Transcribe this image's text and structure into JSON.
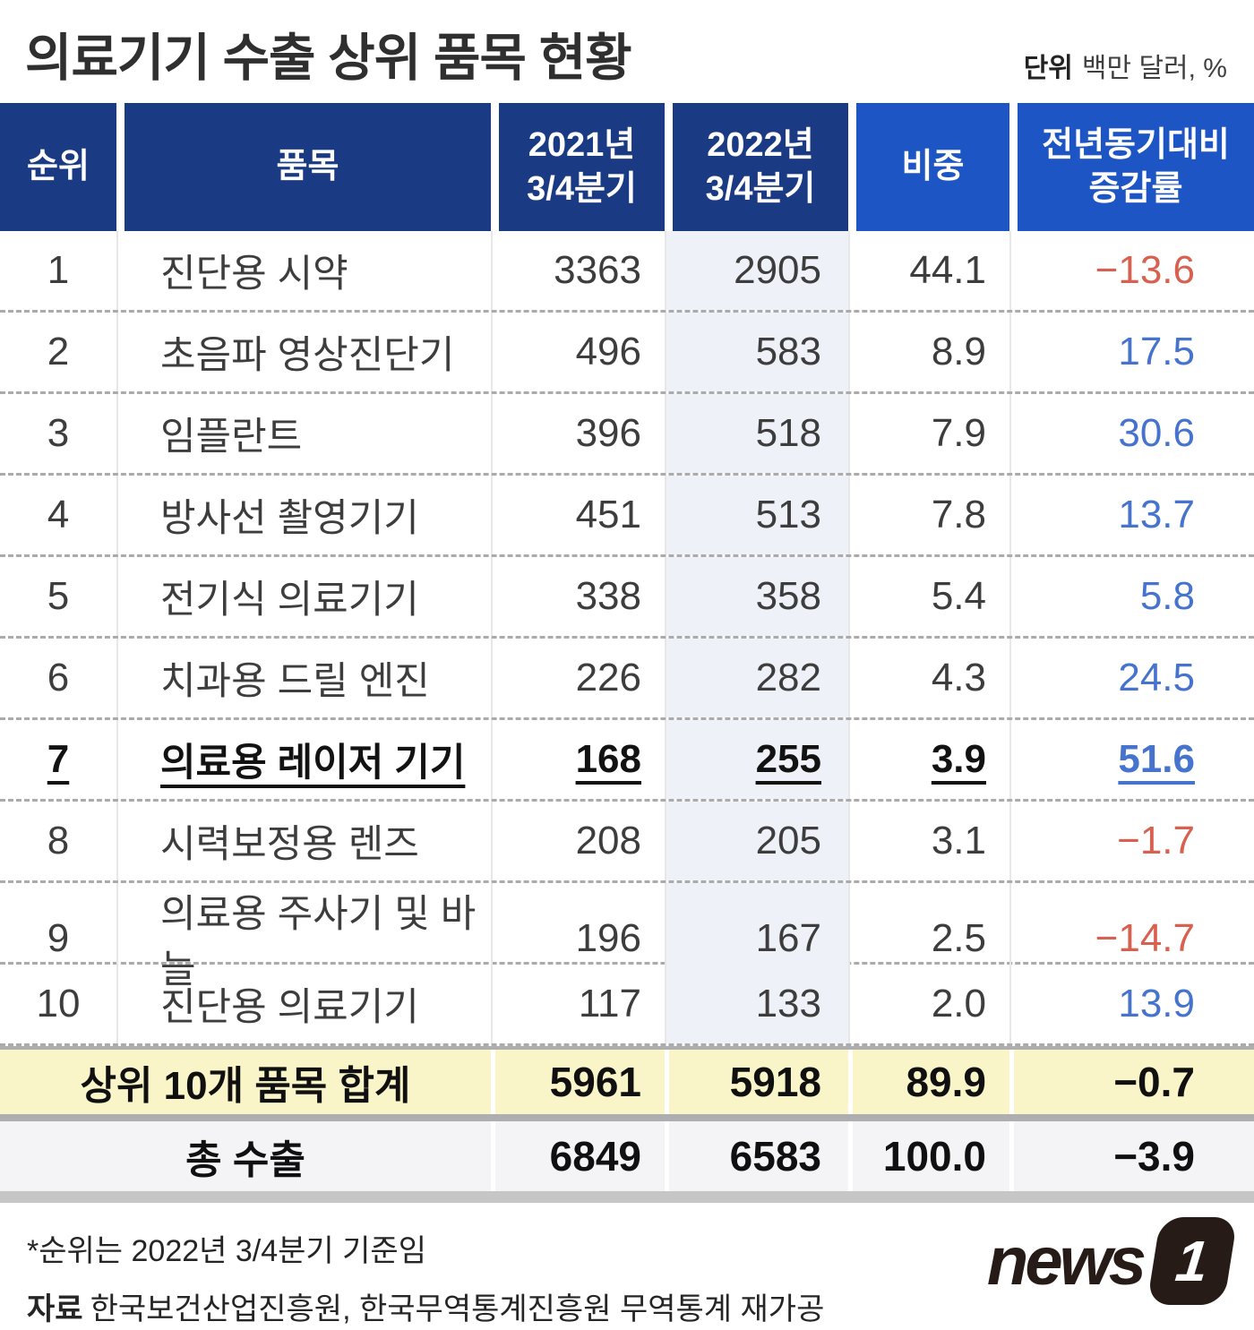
{
  "title": "의료기기 수출 상위 품목 현황",
  "unit": {
    "label": "단위",
    "value": "백만 달러, %"
  },
  "table": {
    "headers": {
      "rank": "순위",
      "item": "품목",
      "y2021": "2021년\n3/4분기",
      "y2022": "2022년\n3/4분기",
      "share": "비중",
      "change": "전년동기대비\n증감률"
    },
    "rows": [
      {
        "rank": "1",
        "item": "진단용 시약",
        "y2021": "3363",
        "y2022": "2905",
        "share": "44.1",
        "change": "−13.6"
      },
      {
        "rank": "2",
        "item": "초음파 영상진단기",
        "y2021": "496",
        "y2022": "583",
        "share": "8.9",
        "change": "17.5"
      },
      {
        "rank": "3",
        "item": "임플란트",
        "y2021": "396",
        "y2022": "518",
        "share": "7.9",
        "change": "30.6"
      },
      {
        "rank": "4",
        "item": "방사선 촬영기기",
        "y2021": "451",
        "y2022": "513",
        "share": "7.8",
        "change": "13.7"
      },
      {
        "rank": "5",
        "item": "전기식 의료기기",
        "y2021": "338",
        "y2022": "358",
        "share": "5.4",
        "change": "5.8"
      },
      {
        "rank": "6",
        "item": "치과용 드릴 엔진",
        "y2021": "226",
        "y2022": "282",
        "share": "4.3",
        "change": "24.5"
      },
      {
        "rank": "7",
        "item": "의료용 레이저 기기",
        "y2021": "168",
        "y2022": "255",
        "share": "3.9",
        "change": "51.6"
      },
      {
        "rank": "8",
        "item": "시력보정용 렌즈",
        "y2021": "208",
        "y2022": "205",
        "share": "3.1",
        "change": "−1.7"
      },
      {
        "rank": "9",
        "item": "의료용 주사기 및 바늘",
        "y2021": "196",
        "y2022": "167",
        "share": "2.5",
        "change": "−14.7"
      },
      {
        "rank": "10",
        "item": "진단용 의료기기",
        "y2021": "117",
        "y2022": "133",
        "share": "2.0",
        "change": "13.9"
      }
    ],
    "summary_top10": {
      "label": "상위 10개 품목 합계",
      "y2021": "5961",
      "y2022": "5918",
      "share": "89.9",
      "change": "−0.7"
    },
    "summary_total": {
      "label": "총 수출",
      "y2021": "6849",
      "y2022": "6583",
      "share": "100.0",
      "change": "−3.9"
    }
  },
  "footer": {
    "note": "*순위는 2022년 3/4분기 기준임",
    "source_label": "자료",
    "source_text": "한국보건산업진흥원, 한국무역통계진흥원 무역통계 재가공"
  },
  "logo": {
    "news": "news",
    "one": "1"
  },
  "colors": {
    "header_navy": "#1b3a84",
    "header_bright_blue": "#1e55c4",
    "positive_blue": "#4673cd",
    "negative_red": "#d8604f",
    "col_2022_tint": "#eef1f8",
    "summary_yellow": "#faf5c9",
    "total_row_gray": "#f4f4f6"
  },
  "chart_data": {
    "type": "table",
    "title": "의료기기 수출 상위 품목 현황",
    "unit": "백만 달러, %",
    "columns": [
      "순위",
      "품목",
      "2021년 3/4분기",
      "2022년 3/4분기",
      "비중",
      "전년동기대비 증감률"
    ],
    "rows": [
      [
        1,
        "진단용 시약",
        3363,
        2905,
        44.1,
        -13.6
      ],
      [
        2,
        "초음파 영상진단기",
        496,
        583,
        8.9,
        17.5
      ],
      [
        3,
        "임플란트",
        396,
        518,
        7.9,
        30.6
      ],
      [
        4,
        "방사선 촬영기기",
        451,
        513,
        7.8,
        13.7
      ],
      [
        5,
        "전기식 의료기기",
        338,
        358,
        5.4,
        5.8
      ],
      [
        6,
        "치과용 드릴 엔진",
        226,
        282,
        4.3,
        24.5
      ],
      [
        7,
        "의료용 레이저 기기",
        168,
        255,
        3.9,
        51.6
      ],
      [
        8,
        "시력보정용 렌즈",
        208,
        205,
        3.1,
        -1.7
      ],
      [
        9,
        "의료용 주사기 및 바늘",
        196,
        167,
        2.5,
        -14.7
      ],
      [
        10,
        "진단용 의료기기",
        117,
        133,
        2.0,
        13.9
      ]
    ],
    "totals": [
      [
        "상위 10개 품목 합계",
        5961,
        5918,
        89.9,
        -0.7
      ],
      [
        "총 수출",
        6849,
        6583,
        100.0,
        -3.9
      ]
    ],
    "highlighted_row": 7,
    "note": "*순위는 2022년 3/4분기 기준임",
    "source": "한국보건산업진흥원, 한국무역통계진흥원 무역통계 재가공"
  }
}
